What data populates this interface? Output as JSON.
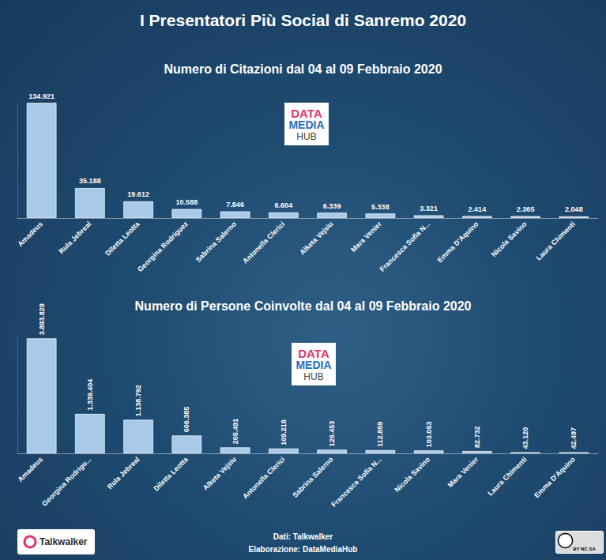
{
  "title": "I Presentatori Più Social di Sanremo 2020",
  "chart_data": [
    {
      "type": "bar",
      "title": "Numero di Citazioni dal 04 al 09 Febbraio 2020",
      "categories": [
        "Amadeus",
        "Rula Jebreal",
        "Diletta Leotta",
        "Georgina Rodriguez",
        "Sabrina Salerno",
        "Antonella Clerici",
        "Alketa Vejsiu",
        "Mara Venier",
        "Francesca Sofia N...",
        "Emma D'Aquino",
        "Nicola Savino",
        "Laura Chimenti"
      ],
      "values": [
        134921,
        35188,
        19612,
        10588,
        7846,
        6604,
        6339,
        5338,
        3321,
        2414,
        2365,
        2048
      ],
      "value_labels": [
        "134.921",
        "35.188",
        "19.612",
        "10.588",
        "7.846",
        "6.604",
        "6.339",
        "5.338",
        "3.321",
        "2.414",
        "2.365",
        "2.048"
      ],
      "color": "#a9c9e8",
      "ylim": [
        0,
        135000
      ],
      "grid": false,
      "data_labels": true,
      "tick_labels": "x"
    },
    {
      "type": "bar",
      "title": "Numero di Persone Coinvolte dal 04 al 09 Febbraio 2020",
      "categories": [
        "Amadeus",
        "Georgina Rodrigu...",
        "Rula Jebreal",
        "Diletta Leotta",
        "Alketa Vejsiu",
        "Antonella Clerici",
        "Sabrina Salerno",
        "Francesca Sofia N...",
        "Nicola Savino",
        "Mara Venier",
        "Laura Chimenti",
        "Emma D'Aquino"
      ],
      "values": [
        3893829,
        1339404,
        1138792,
        606385,
        205491,
        169218,
        126453,
        112859,
        103053,
        82732,
        43120,
        42497
      ],
      "value_labels": [
        "3.893.829",
        "1.339.404",
        "1.138.792",
        "606.385",
        "205.491",
        "169.218",
        "126.453",
        "112.859",
        "103.053",
        "82.732",
        "43.120",
        "42.497"
      ],
      "color": "#a9c9e8",
      "ylim": [
        0,
        3900000
      ],
      "grid": false,
      "data_labels": true,
      "tick_labels": "x"
    }
  ],
  "logo": [
    "DATA",
    "MEDIA",
    "HUB"
  ],
  "footer": {
    "source": "Dati: Talkwalker",
    "credit": "Elaborazione: DataMediaHub",
    "brand": "Talkwalker",
    "license": "BY NC SA"
  }
}
